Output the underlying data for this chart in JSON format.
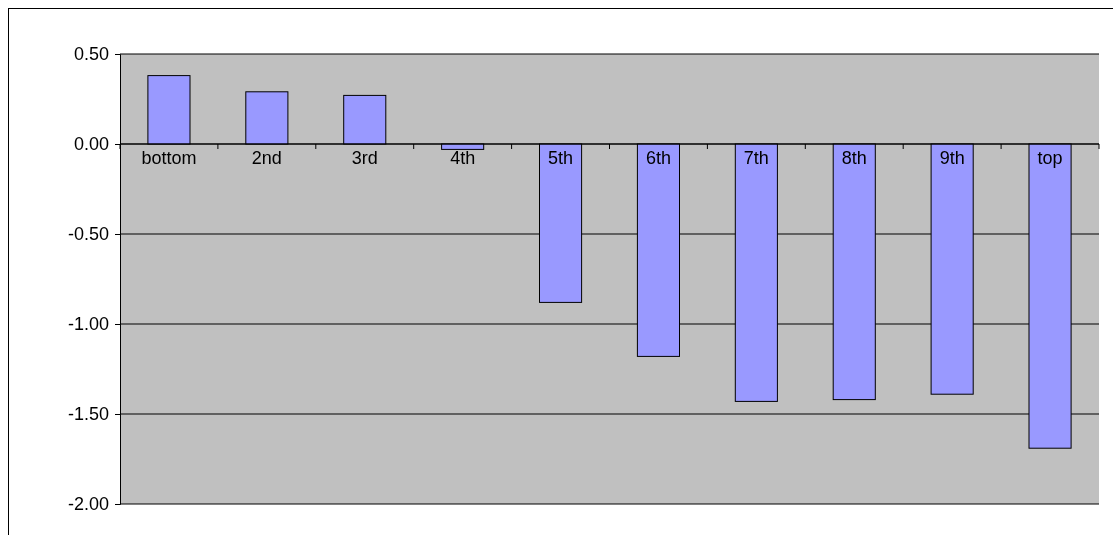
{
  "chart_data": {
    "type": "bar",
    "categories": [
      "bottom",
      "2nd",
      "3rd",
      "4th",
      "5th",
      "6th",
      "7th",
      "8th",
      "9th",
      "top"
    ],
    "values": [
      0.38,
      0.29,
      0.27,
      -0.03,
      -0.88,
      -1.18,
      -1.43,
      -1.42,
      -1.39,
      -1.69
    ],
    "color": "#9999ff",
    "ylim": [
      -2,
      0.5
    ],
    "yticks": [
      {
        "value": 0.5,
        "label": "0.50"
      },
      {
        "value": 0,
        "label": "0.00"
      },
      {
        "value": -0.5,
        "label": "-0.50"
      },
      {
        "value": -1,
        "label": "-1.00"
      },
      {
        "value": -1.5,
        "label": "-1.50"
      },
      {
        "value": -2,
        "label": "-2.00"
      }
    ],
    "grid": "y"
  }
}
